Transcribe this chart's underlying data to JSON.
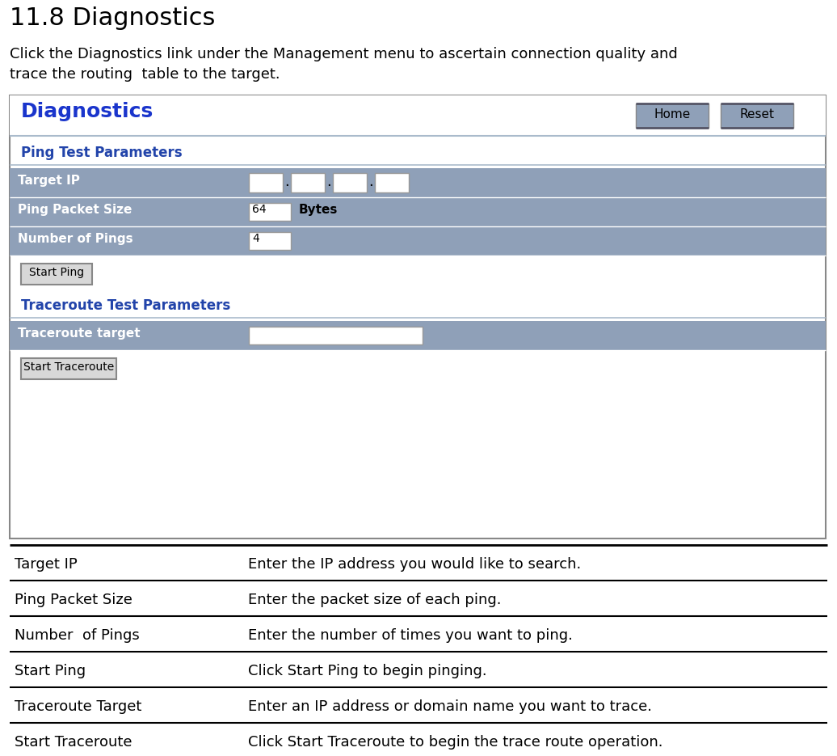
{
  "title": "11.8 Diagnostics",
  "subtitle_line1": "Click the Diagnostics link under the Management menu to ascertain connection quality and",
  "subtitle_line2": "trace the routing  table to the target.",
  "panel_title": "Diagnostics",
  "ping_test_label": "Ping Test Parameters",
  "traceroute_test_label": "Traceroute Test Parameters",
  "panel_border_color": "#999999",
  "row_bg": "#8fa0b8",
  "label_color": "#ffffff",
  "section_label_color": "#2244aa",
  "divider_color": "#aabbcc",
  "button_bg": "#d8d8d8",
  "button_border": "#888888",
  "home_reset_bg": "#8fa0b8",
  "home_reset_dark": "#555566",
  "table_rows": [
    {
      "col1": "Target IP",
      "col2": "Enter the IP address you would like to search."
    },
    {
      "col1": "Ping Packet Size",
      "col2": "Enter the packet size of each ping."
    },
    {
      "col1": "Number  of Pings",
      "col2": "Enter the number of times you want to ping."
    },
    {
      "col1": "Start Ping",
      "col2": "Click Start Ping to begin pinging."
    },
    {
      "col1": "Traceroute Target",
      "col2": "Enter an IP address or domain name you want to trace."
    },
    {
      "col1": "Start Traceroute",
      "col2": "Click Start Traceroute to begin the trace route operation."
    }
  ],
  "figw": 10.36,
  "figh": 9.35,
  "dpi": 100
}
